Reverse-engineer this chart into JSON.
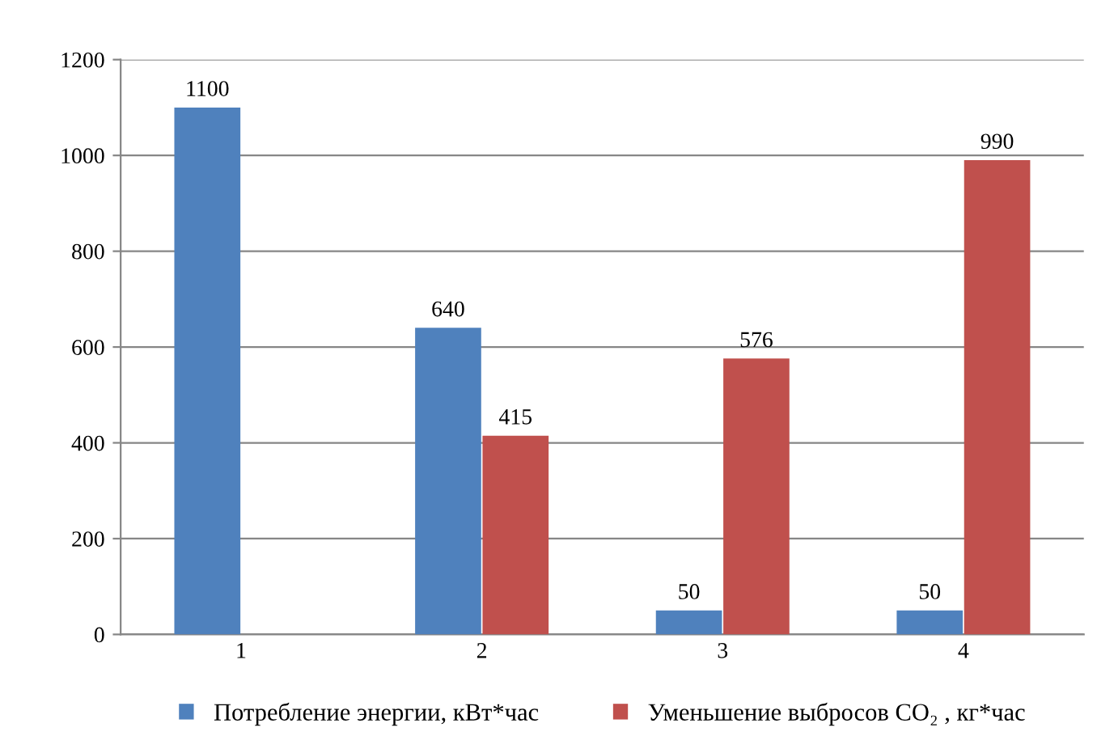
{
  "chart_data": {
    "type": "bar",
    "categories": [
      "1",
      "2",
      "3",
      "4"
    ],
    "series": [
      {
        "name": "Потребление энергии, кВт*час",
        "color": "#4f81bd",
        "values": [
          1100,
          640,
          50,
          50
        ]
      },
      {
        "name": "Уменьшение выбросов CO₂ , кг*час",
        "color": "#c0504d",
        "values": [
          null,
          415,
          576,
          990
        ]
      }
    ],
    "ylim": [
      0,
      1200
    ],
    "yticks": [
      0,
      200,
      400,
      600,
      800,
      1000,
      1200
    ],
    "grid": "y",
    "legend": "bottom",
    "data_labels": true
  }
}
